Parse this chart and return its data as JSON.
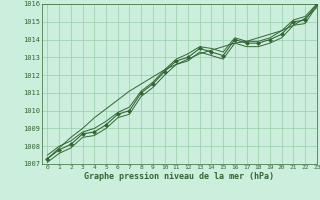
{
  "xlabel": "Graphe pression niveau de la mer (hPa)",
  "x": [
    0,
    1,
    2,
    3,
    4,
    5,
    6,
    7,
    8,
    9,
    10,
    11,
    12,
    13,
    14,
    15,
    16,
    17,
    18,
    19,
    20,
    21,
    22,
    23
  ],
  "y_main": [
    1007.3,
    1007.8,
    1008.1,
    1008.7,
    1008.8,
    1009.2,
    1009.8,
    1010.0,
    1011.0,
    1011.5,
    1012.2,
    1012.8,
    1013.0,
    1013.5,
    1013.3,
    1013.1,
    1014.0,
    1013.8,
    1013.8,
    1014.0,
    1014.3,
    1015.0,
    1015.1,
    1016.0
  ],
  "y_upper": [
    1007.5,
    1008.0,
    1008.3,
    1008.8,
    1009.0,
    1009.4,
    1009.9,
    1010.2,
    1011.1,
    1011.6,
    1012.3,
    1012.9,
    1013.2,
    1013.6,
    1013.5,
    1013.3,
    1014.1,
    1013.9,
    1013.9,
    1014.1,
    1014.5,
    1015.1,
    1015.3,
    1016.0
  ],
  "y_lower": [
    1007.1,
    1007.6,
    1007.9,
    1008.5,
    1008.6,
    1009.0,
    1009.6,
    1009.8,
    1010.8,
    1011.3,
    1012.0,
    1012.6,
    1012.8,
    1013.3,
    1013.1,
    1012.9,
    1013.8,
    1013.6,
    1013.6,
    1013.8,
    1014.1,
    1014.8,
    1014.9,
    1015.9
  ],
  "y_trend": [
    1007.3,
    1007.9,
    1008.5,
    1009.0,
    1009.6,
    1010.1,
    1010.6,
    1011.1,
    1011.5,
    1011.9,
    1012.3,
    1012.6,
    1012.9,
    1013.2,
    1013.4,
    1013.6,
    1013.8,
    1013.9,
    1014.1,
    1014.3,
    1014.5,
    1014.8,
    1015.2,
    1015.8
  ],
  "ylim": [
    1007,
    1016
  ],
  "yticks": [
    1007,
    1008,
    1009,
    1010,
    1011,
    1012,
    1013,
    1014,
    1015,
    1016
  ],
  "xlim": [
    -0.5,
    23
  ],
  "xticks": [
    0,
    1,
    2,
    3,
    4,
    5,
    6,
    7,
    8,
    9,
    10,
    11,
    12,
    13,
    14,
    15,
    16,
    17,
    18,
    19,
    20,
    21,
    22,
    23
  ],
  "line_color": "#336633",
  "marker_color": "#336633",
  "bg_color": "#cceedd",
  "grid_color": "#99ccaa",
  "text_color": "#336633",
  "border_color": "#336633",
  "figwidth": 3.2,
  "figheight": 2.0,
  "dpi": 100
}
